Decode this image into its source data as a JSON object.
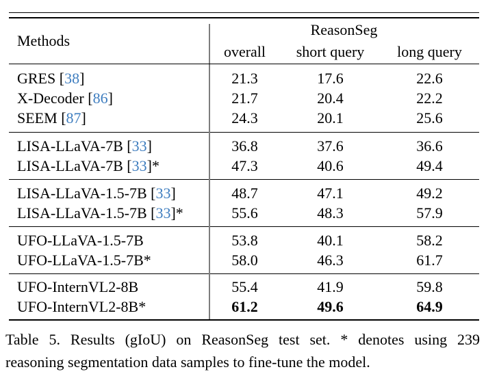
{
  "colors": {
    "citation_blue": "#3e7dbf",
    "divider_gray": "#7d7d7d",
    "rule_black": "#000000"
  },
  "header": {
    "methods_label": "Methods",
    "group_label": "ReasonSeg",
    "columns": [
      "overall",
      "short query",
      "long query"
    ]
  },
  "sections": [
    {
      "rows": [
        {
          "method": "GRES",
          "cite": "38",
          "star": false,
          "bold": false,
          "values": [
            "21.3",
            "17.6",
            "22.6"
          ]
        },
        {
          "method": "X-Decoder",
          "cite": "86",
          "star": false,
          "bold": false,
          "values": [
            "21.7",
            "20.4",
            "22.2"
          ]
        },
        {
          "method": "SEEM",
          "cite": "87",
          "star": false,
          "bold": false,
          "values": [
            "24.3",
            "20.1",
            "25.6"
          ]
        }
      ]
    },
    {
      "rows": [
        {
          "method": "LISA-LLaVA-7B",
          "cite": "33",
          "star": false,
          "bold": false,
          "values": [
            "36.8",
            "37.6",
            "36.6"
          ]
        },
        {
          "method": "LISA-LLaVA-7B",
          "cite": "33",
          "star": true,
          "bold": false,
          "values": [
            "47.3",
            "40.6",
            "49.4"
          ]
        }
      ]
    },
    {
      "rows": [
        {
          "method": "LISA-LLaVA-1.5-7B",
          "cite": "33",
          "star": false,
          "bold": false,
          "values": [
            "48.7",
            "47.1",
            "49.2"
          ]
        },
        {
          "method": "LISA-LLaVA-1.5-7B",
          "cite": "33",
          "star": true,
          "bold": false,
          "values": [
            "55.6",
            "48.3",
            "57.9"
          ]
        }
      ]
    },
    {
      "rows": [
        {
          "method": "UFO-LLaVA-1.5-7B",
          "cite": null,
          "star": false,
          "bold": false,
          "values": [
            "53.8",
            "40.1",
            "58.2"
          ]
        },
        {
          "method": "UFO-LLaVA-1.5-7B",
          "cite": null,
          "star": true,
          "bold": false,
          "values": [
            "58.0",
            "46.3",
            "61.7"
          ]
        }
      ]
    },
    {
      "rows": [
        {
          "method": "UFO-InternVL2-8B",
          "cite": null,
          "star": false,
          "bold": false,
          "values": [
            "55.4",
            "41.9",
            "59.8"
          ]
        },
        {
          "method": "UFO-InternVL2-8B",
          "cite": null,
          "star": true,
          "bold": true,
          "values": [
            "61.2",
            "49.6",
            "64.9"
          ]
        }
      ]
    }
  ],
  "caption": {
    "line1": "Table 5. Results (gIoU) on ReasonSeg test set. * denotes using 239",
    "line2": "reasoning segmentation data samples to fine-tune the model."
  },
  "symbols": {
    "star": "*",
    "bracket_open": "[",
    "bracket_close": "]"
  }
}
